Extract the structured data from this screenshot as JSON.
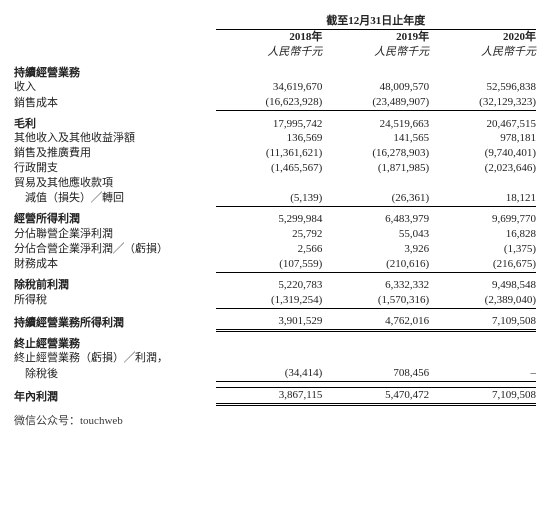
{
  "header": {
    "super": "截至12月31日止年度",
    "years": [
      "2018年",
      "2019年",
      "2020年"
    ],
    "unit": [
      "人民幣千元",
      "人民幣千元",
      "人民幣千元"
    ]
  },
  "rows": [
    {
      "label": "持續經營業務",
      "bold": true,
      "v": [
        "",
        "",
        ""
      ]
    },
    {
      "label": "收入",
      "v": [
        "34,619,670",
        "48,009,570",
        "52,596,838"
      ]
    },
    {
      "label": "銷售成本",
      "v": [
        "(16,623,928)",
        "(23,489,907)",
        "(32,129,323)"
      ],
      "rule": "below"
    },
    {
      "label": "",
      "gap": true
    },
    {
      "label": "毛利",
      "bold": true,
      "v": [
        "17,995,742",
        "24,519,663",
        "20,467,515"
      ]
    },
    {
      "label": "其他收入及其他收益淨額",
      "v": [
        "136,569",
        "141,565",
        "978,181"
      ]
    },
    {
      "label": "銷售及推廣費用",
      "v": [
        "(11,361,621)",
        "(16,278,903)",
        "(9,740,401)"
      ]
    },
    {
      "label": "行政開支",
      "v": [
        "(1,465,567)",
        "(1,871,985)",
        "(2,023,646)"
      ]
    },
    {
      "label": "貿易及其他應收款項",
      "v": [
        "",
        "",
        ""
      ]
    },
    {
      "label": "減值（損失）╱轉回",
      "ind": "ind1",
      "v": [
        "(5,139)",
        "(26,361)",
        "18,121"
      ],
      "rule": "below"
    },
    {
      "label": "",
      "gap": true
    },
    {
      "label": "經營所得利潤",
      "bold": true,
      "v": [
        "5,299,984",
        "6,483,979",
        "9,699,770"
      ]
    },
    {
      "label": "分佔聯營企業淨利潤",
      "v": [
        "25,792",
        "55,043",
        "16,828"
      ]
    },
    {
      "label": "分佔合營企業淨利潤╱（虧損）",
      "v": [
        "2,566",
        "3,926",
        "(1,375)"
      ]
    },
    {
      "label": "財務成本",
      "v": [
        "(107,559)",
        "(210,616)",
        "(216,675)"
      ],
      "rule": "below"
    },
    {
      "label": "",
      "gap": true
    },
    {
      "label": "除稅前利潤",
      "bold": true,
      "v": [
        "5,220,783",
        "6,332,332",
        "9,498,548"
      ]
    },
    {
      "label": "所得稅",
      "v": [
        "(1,319,254)",
        "(1,570,316)",
        "(2,389,040)"
      ],
      "rule": "below"
    },
    {
      "label": "",
      "gap": true
    },
    {
      "label": "持續經營業務所得利潤",
      "bold": true,
      "v": [
        "3,901,529",
        "4,762,016",
        "7,109,508"
      ],
      "rule": "double"
    },
    {
      "label": "",
      "gap": true
    },
    {
      "label": "終止經營業務",
      "bold": true,
      "v": [
        "",
        "",
        ""
      ]
    },
    {
      "label": "終止經營業務（虧損）╱利潤，",
      "v": [
        "",
        "",
        ""
      ]
    },
    {
      "label": "除稅後",
      "ind": "ind1",
      "v": [
        "(34,414)",
        "708,456",
        "–"
      ],
      "rule": "below"
    },
    {
      "label": "",
      "gap": true
    },
    {
      "label": "年內利潤",
      "bold": true,
      "v": [
        "3,867,115",
        "5,470,472",
        "7,109,508"
      ],
      "rule": "double-open"
    }
  ],
  "source": "微信公众号：touchweb",
  "colors": {
    "text": "#222222",
    "rule": "#000000",
    "background": "#ffffff"
  }
}
